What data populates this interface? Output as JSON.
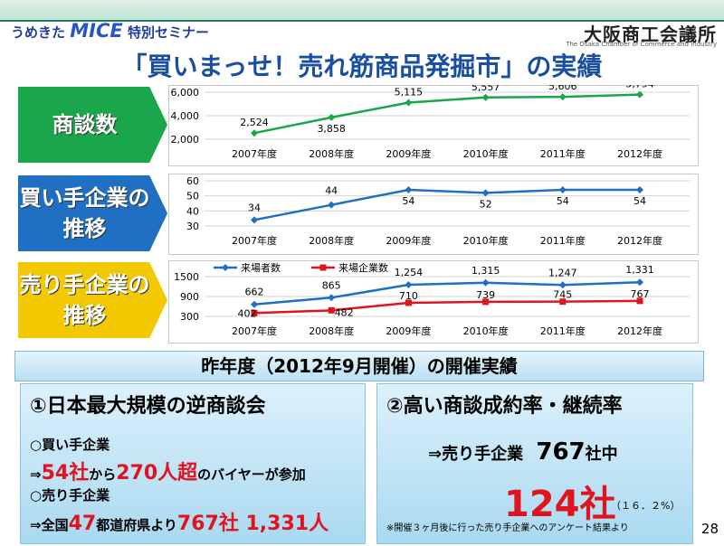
{
  "header": {
    "brand_prefix": "うめきた",
    "brand_mice": "MICE",
    "brand_suffix": "特別セミナー",
    "org_name": "大阪商工会議所",
    "org_sub": "The Osaka Chamber of Commerce and Industry"
  },
  "title": "「買いまっせ！売れ筋商品発掘市」の実績",
  "sections": [
    {
      "label": "商談数",
      "color": "#1aa64a"
    },
    {
      "label": "買い手企業の推移",
      "color": "#1f6fc2"
    },
    {
      "label": "売り手企業の推移",
      "color": "#f2c800"
    }
  ],
  "chart_data": [
    {
      "type": "line",
      "title": "",
      "categories": [
        "2007年度",
        "2008年度",
        "2009年度",
        "2010年度",
        "2011年度",
        "2012年度"
      ],
      "ylim": [
        2000,
        6000
      ],
      "yticks": [
        "2,000",
        "4,000",
        "6,000"
      ],
      "series": [
        {
          "values": [
            2524,
            3858,
            5115,
            5557,
            5606,
            5794
          ],
          "labels": [
            "2,524",
            "3,858",
            "5,115",
            "5,557",
            "5,606",
            "5,794"
          ],
          "color": "#1aa64a"
        }
      ]
    },
    {
      "type": "line",
      "title": "",
      "categories": [
        "2007年度",
        "2008年度",
        "2009年度",
        "2010年度",
        "2011年度",
        "2012年度"
      ],
      "ylim": [
        30,
        60
      ],
      "yticks": [
        "30",
        "40",
        "50",
        "60"
      ],
      "series": [
        {
          "values": [
            34,
            44,
            54,
            52,
            54,
            54
          ],
          "labels": [
            "34",
            "44",
            "54",
            "52",
            "54",
            "54"
          ],
          "color": "#1f6fc2"
        }
      ]
    },
    {
      "type": "line",
      "title": "",
      "legend_position": "top-left",
      "categories": [
        "2007年度",
        "2008年度",
        "2009年度",
        "2010年度",
        "2011年度",
        "2012年度"
      ],
      "ylim": [
        300,
        1500
      ],
      "yticks": [
        "300",
        "900",
        "1500"
      ],
      "series": [
        {
          "name": "来場者数",
          "values": [
            662,
            865,
            1254,
            1315,
            1247,
            1331
          ],
          "labels": [
            "662",
            "865",
            "1,254",
            "1,315",
            "1,247",
            "1,331"
          ],
          "color": "#1f6fc2"
        },
        {
          "name": "来場企業数",
          "values": [
            402,
            482,
            710,
            739,
            745,
            767
          ],
          "labels": [
            "402",
            "482",
            "710",
            "739",
            "745",
            "767"
          ],
          "color": "#e0141e"
        }
      ]
    }
  ],
  "banner": "昨年度（2012年9月開催）の開催実績",
  "panel1": {
    "heading": "①日本最大規模の逆商談会",
    "buyer_label": "○買い手企業",
    "l2_pre": "⇒",
    "l2_num1": "54社",
    "l2_mid": "から",
    "l2_num2": "270人超",
    "l2_post": "のバイヤーが参加",
    "seller_label": "○売り手企業",
    "l4_pre": "⇒全国",
    "l4_num1": "47",
    "l4_mid": "都道府県より",
    "l4_num2": "767社 1,331人"
  },
  "panel2": {
    "heading": "②高い商談成約率・継続率",
    "line1_pre": "⇒売り手企業",
    "line1_num": "767",
    "line1_post": "社中",
    "big_num": "124社",
    "pct": "（１６．２%）",
    "note": "※開催３ヶ月後に行った売り手企業へのアンケート結果より"
  },
  "page_number": "28"
}
